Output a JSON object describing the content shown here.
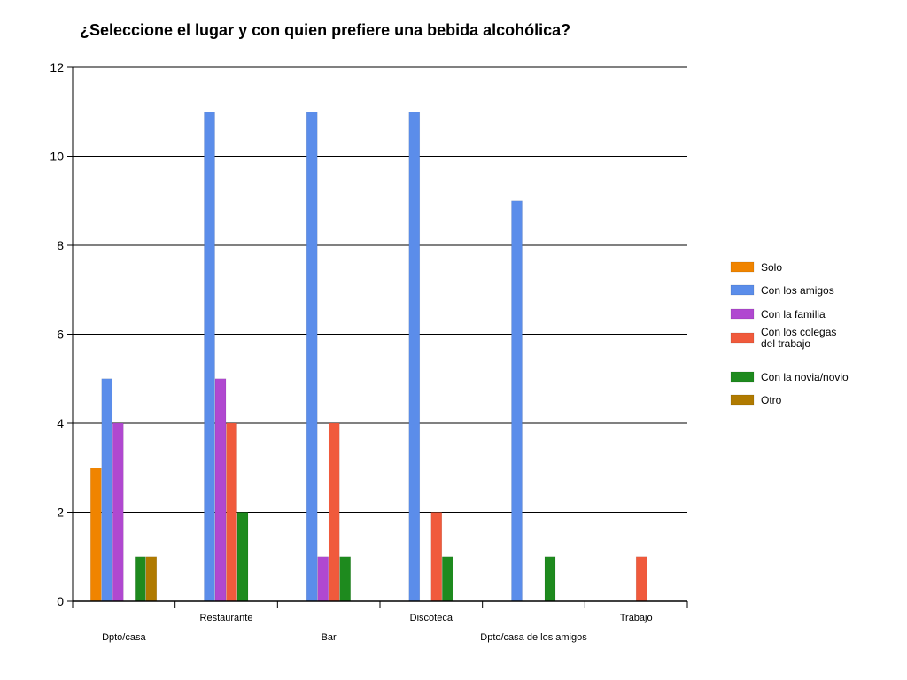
{
  "chart_data": {
    "type": "bar",
    "title": "¿Seleccione el lugar y con quien prefiere una bebida alcohólica?",
    "categories": [
      "Dpto/casa",
      "Restaurante",
      "Bar",
      "Discoteca",
      "Dpto/casa de los amigos",
      "Trabajo"
    ],
    "ylim": [
      0,
      12
    ],
    "yticks": [
      0,
      2,
      4,
      6,
      8,
      10,
      12
    ],
    "grid": true,
    "legend_position": "right",
    "series": [
      {
        "name": "Solo",
        "color": "#F08400",
        "values": [
          3,
          0,
          0,
          0,
          0,
          0
        ]
      },
      {
        "name": "Con los amigos",
        "color": "#5B8DEA",
        "values": [
          5,
          11,
          11,
          11,
          9,
          0
        ]
      },
      {
        "name": "Con la familia",
        "color": "#B048D0",
        "values": [
          4,
          5,
          1,
          0,
          0,
          0
        ]
      },
      {
        "name": "Con los colegas del trabajo",
        "color": "#F05A3C",
        "values": [
          0,
          4,
          4,
          2,
          0,
          1
        ]
      },
      {
        "name": "Con la novia/novio",
        "color": "#1E8A1E",
        "values": [
          1,
          2,
          1,
          1,
          1,
          0
        ]
      },
      {
        "name": "Otro",
        "color": "#B07A00",
        "values": [
          1,
          0,
          0,
          0,
          0,
          0
        ]
      }
    ]
  }
}
